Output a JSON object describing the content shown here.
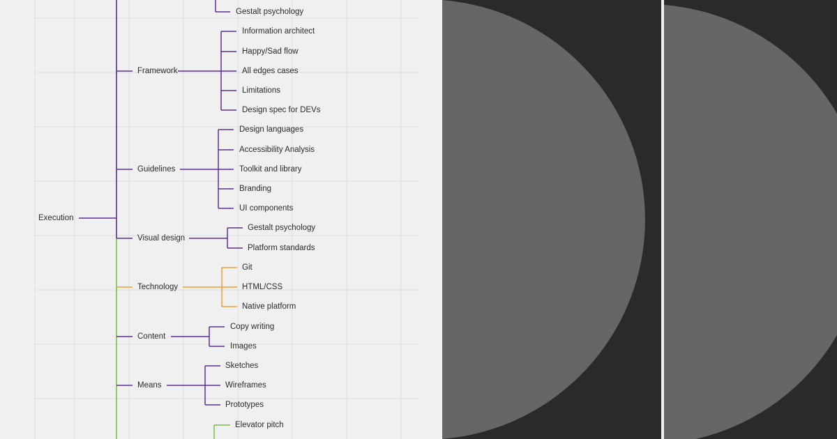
{
  "colors": {
    "purple": "#5b2d90",
    "orange": "#f0a030",
    "green": "#7ac143",
    "grid": "#dedede",
    "canvas": "#f0f0f0",
    "dark": "#2a2a2a",
    "circle": "#666666"
  },
  "mindmap": {
    "root": "Execution",
    "top_leaf": "Gestalt psychology",
    "branches": [
      {
        "label": "Framework",
        "color": "purple",
        "children": [
          "Information architect",
          "Happy/Sad flow",
          "All edges cases",
          "Limitations",
          "Design spec for DEVs"
        ]
      },
      {
        "label": "Guidelines",
        "color": "purple",
        "children": [
          "Design languages",
          "Accessibility Analysis",
          "Toolkit and library",
          "Branding",
          "UI components"
        ]
      },
      {
        "label": "Visual design",
        "color": "purple",
        "children": [
          "Gestalt psychology",
          "Platform standards"
        ]
      },
      {
        "label": "Technology",
        "color": "orange",
        "children": [
          "Git",
          "HTML/CSS",
          "Native platform"
        ]
      },
      {
        "label": "Content",
        "color": "purple",
        "children": [
          "Copy writing",
          "Images"
        ]
      },
      {
        "label": "Means",
        "color": "purple",
        "children": [
          "Sketches",
          "Wireframes",
          "Prototypes"
        ]
      }
    ],
    "bottom_leaf": "Elevator pitch"
  }
}
